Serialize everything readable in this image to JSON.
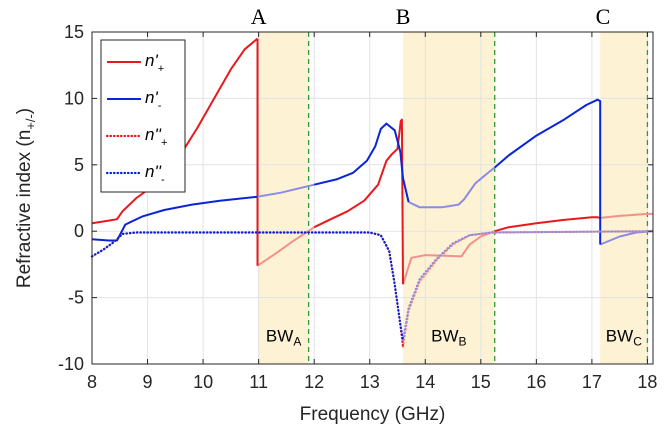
{
  "chart_data": {
    "type": "line",
    "xlabel": "Frequency (GHz)",
    "ylabel": "Refractive index (n",
    "ylabel_sub": "+/-",
    "ylabel_end": ")",
    "xlim": [
      8,
      18.1
    ],
    "ylim": [
      -10,
      15
    ],
    "x_ticks": [
      8,
      9,
      10,
      11,
      12,
      13,
      14,
      15,
      16,
      17,
      18
    ],
    "y_ticks": [
      -10,
      -5,
      0,
      5,
      10,
      15
    ],
    "grid": true,
    "legend_position": "top-left",
    "colors": {
      "red": "#e8191e",
      "blue": "#0a25d6",
      "light_red": "#f4908a",
      "light_blue": "#8c8ae6",
      "band": "#fdf2d4",
      "dashed": "#2e9a35"
    },
    "bands": [
      {
        "name": "BW",
        "sub": "A",
        "x": [
          11.0,
          11.9
        ]
      },
      {
        "name": "BW",
        "sub": "B",
        "x": [
          13.6,
          15.25
        ]
      },
      {
        "name": "BW",
        "sub": "C",
        "x": [
          17.15,
          18.0
        ]
      }
    ],
    "points": [
      {
        "label": "A",
        "x": 11.0
      },
      {
        "label": "B",
        "x": 13.6
      },
      {
        "label": "C",
        "x": 17.2
      }
    ],
    "series": [
      {
        "name": "n'",
        "sub": "+",
        "color": "red",
        "style": "solid",
        "segments": [
          [
            [
              8,
              0.6
            ],
            [
              8.3,
              0.8
            ],
            [
              8.45,
              0.9
            ],
            [
              8.55,
              1.5
            ],
            [
              8.8,
              2.5
            ],
            [
              9.0,
              3.1
            ],
            [
              9.3,
              4.2
            ],
            [
              9.6,
              5.8
            ],
            [
              9.9,
              7.8
            ],
            [
              10.2,
              10.0
            ],
            [
              10.5,
              12.2
            ],
            [
              10.75,
              13.7
            ],
            [
              10.98,
              14.5
            ]
          ],
          [
            [
              10.98,
              14.5
            ],
            [
              10.98,
              -2.6
            ]
          ],
          [
            [
              12.0,
              0.3
            ],
            [
              12.3,
              0.9
            ],
            [
              12.6,
              1.5
            ],
            [
              12.9,
              2.3
            ],
            [
              13.15,
              3.5
            ],
            [
              13.3,
              5.3
            ],
            [
              13.4,
              5.8
            ],
            [
              13.5,
              6.2
            ],
            [
              13.56,
              8.3
            ],
            [
              13.58,
              8.4
            ],
            [
              13.6,
              -4.0
            ]
          ],
          [
            [
              15.25,
              0.0
            ],
            [
              15.5,
              0.3
            ],
            [
              16.0,
              0.6
            ],
            [
              16.5,
              0.85
            ],
            [
              17.0,
              1.05
            ],
            [
              17.1,
              1.05
            ],
            [
              17.15,
              1.0
            ]
          ]
        ],
        "faded_segments": [
          [
            [
              10.98,
              -2.6
            ],
            [
              11.3,
              -1.7
            ],
            [
              11.6,
              -0.8
            ],
            [
              12.0,
              0.3
            ]
          ],
          [
            [
              13.6,
              -4.0
            ],
            [
              13.75,
              -2.0
            ],
            [
              14.0,
              -1.8
            ],
            [
              14.35,
              -1.85
            ],
            [
              14.65,
              -1.9
            ],
            [
              14.8,
              -1.0
            ],
            [
              15.0,
              -0.4
            ],
            [
              15.25,
              0.0
            ]
          ],
          [
            [
              17.15,
              1.0
            ],
            [
              17.5,
              1.15
            ],
            [
              18.0,
              1.3
            ],
            [
              18.1,
              1.3
            ]
          ]
        ]
      },
      {
        "name": "n'",
        "sub": "-",
        "color": "blue",
        "style": "solid",
        "segments": [
          [
            [
              8,
              -0.6
            ],
            [
              8.3,
              -0.7
            ],
            [
              8.45,
              -0.7
            ],
            [
              8.6,
              0.5
            ],
            [
              8.9,
              1.1
            ],
            [
              9.3,
              1.6
            ],
            [
              9.8,
              2.0
            ],
            [
              10.3,
              2.3
            ],
            [
              10.98,
              2.6
            ]
          ],
          [
            [
              12.0,
              3.5
            ],
            [
              12.4,
              3.9
            ],
            [
              12.7,
              4.4
            ],
            [
              12.95,
              5.3
            ],
            [
              13.1,
              6.4
            ],
            [
              13.2,
              7.7
            ],
            [
              13.3,
              8.1
            ],
            [
              13.45,
              7.6
            ],
            [
              13.55,
              6.0
            ],
            [
              13.6,
              4.0
            ],
            [
              13.7,
              2.2
            ]
          ],
          [
            [
              15.25,
              4.8
            ],
            [
              15.5,
              5.7
            ],
            [
              16.0,
              7.2
            ],
            [
              16.5,
              8.4
            ],
            [
              16.9,
              9.5
            ],
            [
              17.1,
              9.9
            ],
            [
              17.15,
              9.8
            ],
            [
              17.15,
              -1.0
            ]
          ]
        ],
        "faded_segments": [
          [
            [
              10.98,
              2.6
            ],
            [
              11.4,
              2.9
            ],
            [
              12.0,
              3.5
            ]
          ],
          [
            [
              13.7,
              2.2
            ],
            [
              13.9,
              1.8
            ],
            [
              14.3,
              1.8
            ],
            [
              14.6,
              2.0
            ],
            [
              14.7,
              2.4
            ],
            [
              14.9,
              3.6
            ],
            [
              15.1,
              4.3
            ],
            [
              15.25,
              4.8
            ]
          ],
          [
            [
              17.15,
              -1.0
            ],
            [
              17.5,
              -0.4
            ],
            [
              17.8,
              -0.1
            ],
            [
              18.1,
              0.0
            ]
          ]
        ]
      },
      {
        "name": "n''",
        "sub": "+",
        "color": "red",
        "style": "dotted",
        "segments": [
          [
            [
              8,
              -1.9
            ],
            [
              8.2,
              -1.4
            ],
            [
              8.4,
              -0.8
            ],
            [
              8.55,
              -0.2
            ],
            [
              8.8,
              -0.1
            ],
            [
              13.0,
              -0.1
            ],
            [
              13.2,
              -0.3
            ],
            [
              13.35,
              -1.5
            ],
            [
              13.45,
              -4.0
            ],
            [
              13.55,
              -7.0
            ],
            [
              13.6,
              -8.7
            ]
          ]
        ],
        "faded_segments": [
          [
            [
              13.6,
              -8.7
            ],
            [
              13.7,
              -6.0
            ],
            [
              13.9,
              -3.8
            ],
            [
              14.2,
              -2.2
            ],
            [
              14.5,
              -1.0
            ],
            [
              14.8,
              -0.3
            ],
            [
              15.2,
              -0.1
            ],
            [
              18.1,
              0.0
            ]
          ]
        ]
      },
      {
        "name": "n''",
        "sub": "-",
        "color": "blue",
        "style": "dotted",
        "segments": [
          [
            [
              8,
              -1.9
            ],
            [
              8.2,
              -1.4
            ],
            [
              8.4,
              -0.8
            ],
            [
              8.55,
              -0.2
            ],
            [
              8.8,
              -0.1
            ],
            [
              13.0,
              -0.1
            ],
            [
              13.2,
              -0.3
            ],
            [
              13.35,
              -1.5
            ],
            [
              13.45,
              -4.0
            ],
            [
              13.55,
              -7.0
            ],
            [
              13.6,
              -8.2
            ]
          ]
        ],
        "faded_segments": [
          [
            [
              13.6,
              -8.2
            ],
            [
              13.7,
              -5.8
            ],
            [
              13.9,
              -3.6
            ],
            [
              14.2,
              -2.1
            ],
            [
              14.5,
              -0.9
            ],
            [
              14.8,
              -0.3
            ],
            [
              15.2,
              -0.1
            ],
            [
              18.1,
              0.0
            ]
          ]
        ]
      }
    ]
  }
}
